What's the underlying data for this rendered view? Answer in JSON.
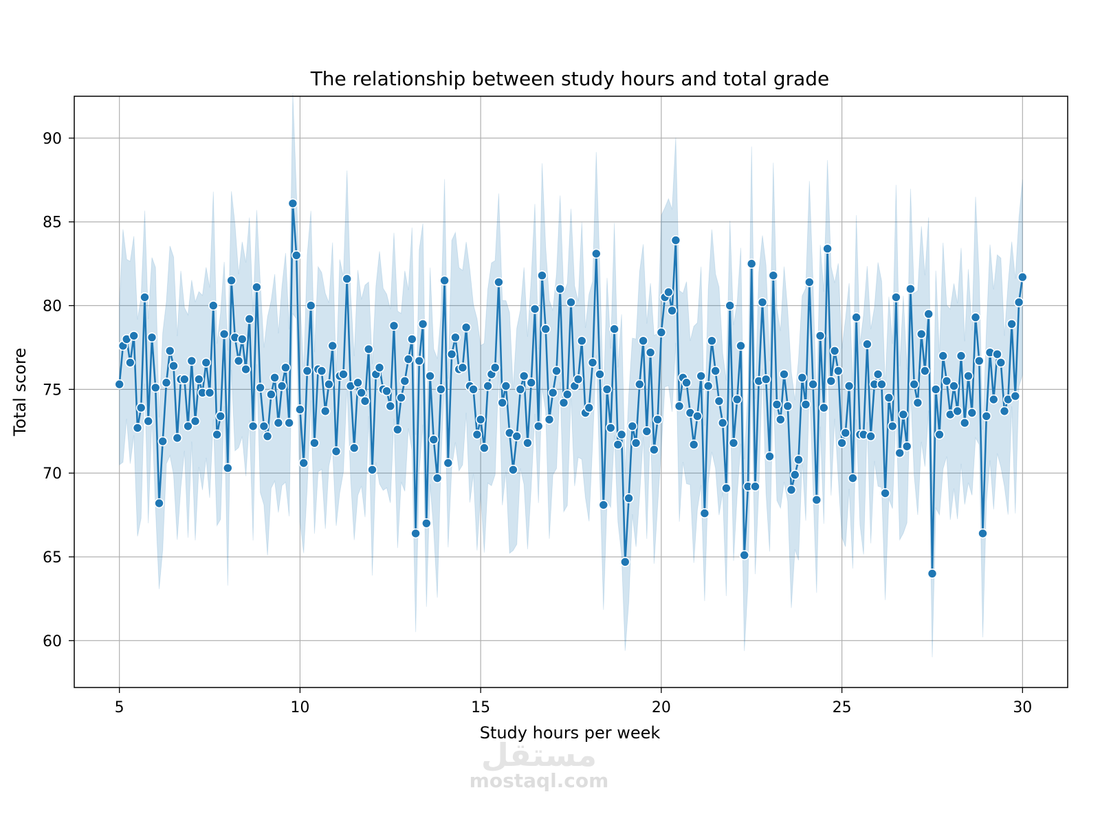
{
  "chart_data": {
    "type": "line",
    "title": "The relationship between study hours and total grade",
    "xlabel": "Study hours per week",
    "ylabel": "Total score",
    "xlim": [
      3.75,
      31.25
    ],
    "ylim": [
      57.2,
      92.5
    ],
    "xticks": [
      5,
      10,
      15,
      20,
      25,
      30
    ],
    "yticks": [
      60,
      65,
      70,
      75,
      80,
      85,
      90
    ],
    "grid": true,
    "series": [
      {
        "name": "Total score",
        "color": "#1f77b4",
        "band_color": "#1f77b4",
        "x": [
          5.0,
          5.1,
          5.2,
          5.3,
          5.4,
          5.5,
          5.6,
          5.7,
          5.8,
          5.9,
          6.0,
          6.1,
          6.2,
          6.3,
          6.4,
          6.5,
          6.6,
          6.7,
          6.8,
          6.9,
          7.0,
          7.1,
          7.2,
          7.3,
          7.4,
          7.5,
          7.6,
          7.7,
          7.8,
          7.9,
          8.0,
          8.1,
          8.2,
          8.3,
          8.4,
          8.5,
          8.6,
          8.7,
          8.8,
          8.9,
          9.0,
          9.1,
          9.2,
          9.3,
          9.4,
          9.5,
          9.6,
          9.7,
          9.8,
          9.9,
          10.0,
          10.1,
          10.2,
          10.3,
          10.4,
          10.5,
          10.6,
          10.7,
          10.8,
          10.9,
          11.0,
          11.1,
          11.2,
          11.3,
          11.4,
          11.5,
          11.6,
          11.7,
          11.8,
          11.9,
          12.0,
          12.1,
          12.2,
          12.3,
          12.4,
          12.5,
          12.6,
          12.7,
          12.8,
          12.9,
          13.0,
          13.1,
          13.2,
          13.3,
          13.4,
          13.5,
          13.6,
          13.7,
          13.8,
          13.9,
          14.0,
          14.1,
          14.2,
          14.3,
          14.4,
          14.5,
          14.6,
          14.7,
          14.8,
          14.9,
          15.0,
          15.1,
          15.2,
          15.3,
          15.4,
          15.5,
          15.6,
          15.7,
          15.8,
          15.9,
          16.0,
          16.1,
          16.2,
          16.3,
          16.4,
          16.5,
          16.6,
          16.7,
          16.8,
          16.9,
          17.0,
          17.1,
          17.2,
          17.3,
          17.4,
          17.5,
          17.6,
          17.7,
          17.8,
          17.9,
          18.0,
          18.1,
          18.2,
          18.3,
          18.4,
          18.5,
          18.6,
          18.7,
          18.8,
          18.9,
          19.0,
          19.1,
          19.2,
          19.3,
          19.4,
          19.5,
          19.6,
          19.7,
          19.8,
          19.9,
          20.0,
          20.1,
          20.2,
          20.3,
          20.4,
          20.5,
          20.6,
          20.7,
          20.8,
          20.9,
          21.0,
          21.1,
          21.2,
          21.3,
          21.4,
          21.5,
          21.6,
          21.7,
          21.8,
          21.9,
          22.0,
          22.1,
          22.2,
          22.3,
          22.4,
          22.5,
          22.6,
          22.7,
          22.8,
          22.9,
          23.0,
          23.1,
          23.2,
          23.3,
          23.4,
          23.5,
          23.6,
          23.7,
          23.8,
          23.9,
          24.0,
          24.1,
          24.2,
          24.3,
          24.4,
          24.5,
          24.6,
          24.7,
          24.8,
          24.9,
          25.0,
          25.1,
          25.2,
          25.3,
          25.4,
          25.5,
          25.6,
          25.7,
          25.8,
          25.9,
          26.0,
          26.1,
          26.2,
          26.3,
          26.4,
          26.5,
          26.6,
          26.7,
          26.8,
          26.9,
          27.0,
          27.1,
          27.2,
          27.3,
          27.4,
          27.5,
          27.6,
          27.7,
          27.8,
          27.9,
          28.0,
          28.1,
          28.2,
          28.3,
          28.4,
          28.5,
          28.6,
          28.7,
          28.8,
          28.9,
          29.0,
          29.1,
          29.2,
          29.3,
          29.4,
          29.5,
          29.6,
          29.7,
          29.8,
          29.9,
          30.0
        ],
        "values": [
          75.3,
          77.6,
          78.0,
          76.6,
          78.2,
          72.7,
          73.9,
          80.5,
          73.1,
          78.1,
          75.1,
          68.2,
          71.9,
          75.4,
          77.3,
          76.4,
          72.1,
          75.6,
          75.6,
          72.8,
          76.7,
          73.1,
          75.6,
          74.8,
          76.6,
          74.8,
          80.0,
          72.3,
          73.4,
          78.3,
          70.3,
          81.5,
          78.1,
          76.7,
          78.0,
          76.2,
          79.2,
          72.8,
          81.1,
          75.1,
          72.8,
          72.2,
          74.7,
          75.7,
          73.0,
          75.2,
          76.3,
          73.0,
          86.1,
          83.0,
          73.8,
          70.6,
          76.1,
          80.0,
          71.8,
          76.2,
          76.1,
          73.7,
          75.3,
          77.6,
          71.3,
          75.8,
          75.9,
          81.6,
          75.2,
          71.5,
          75.4,
          74.8,
          74.3,
          77.4,
          70.2,
          75.9,
          76.3,
          75.0,
          74.9,
          74.0,
          78.8,
          72.6,
          74.5,
          75.5,
          76.8,
          78.0,
          66.4,
          76.7,
          78.9,
          67.0,
          75.8,
          72.0,
          69.7,
          75.0,
          81.5,
          70.6,
          77.1,
          78.1,
          76.2,
          76.3,
          78.7,
          75.2,
          75.0,
          72.3,
          73.2,
          71.5,
          75.2,
          75.9,
          76.3,
          81.4,
          74.2,
          75.2,
          72.4,
          70.2,
          72.2,
          75.0,
          75.8,
          71.8,
          75.4,
          79.8,
          72.8,
          81.8,
          78.6,
          73.2,
          74.8,
          76.1,
          81.0,
          74.2,
          74.7,
          80.2,
          75.2,
          75.6,
          77.9,
          73.6,
          73.9,
          76.6,
          83.1,
          75.9,
          68.1,
          75.0,
          72.7,
          78.6,
          71.7,
          72.3,
          64.7,
          68.5,
          72.8,
          71.8,
          75.3,
          77.9,
          72.5,
          77.2,
          71.4,
          73.2,
          78.4,
          80.5,
          80.8,
          79.7,
          83.9,
          74.0,
          75.7,
          75.4,
          73.6,
          71.7,
          73.4,
          75.8,
          67.6,
          75.2,
          77.9,
          76.1,
          74.3,
          73.0,
          69.1,
          80.0,
          71.8,
          74.4,
          77.6,
          65.1,
          69.2,
          82.5,
          69.2,
          75.5,
          80.2,
          75.6,
          71.0,
          81.8,
          74.1,
          73.2,
          75.9,
          74.0,
          69.0,
          69.9,
          70.8,
          75.7,
          74.1,
          81.4,
          75.3,
          68.4,
          78.2,
          73.9,
          83.4,
          75.5,
          77.3,
          76.1,
          71.8,
          72.4,
          75.2,
          69.7,
          79.3,
          72.3,
          72.3,
          77.7,
          72.2,
          75.3,
          75.9,
          75.3,
          68.8,
          74.5,
          72.8,
          80.5,
          71.2,
          73.5,
          71.6,
          81.0,
          75.3,
          74.2,
          78.3,
          76.1,
          79.5,
          64.0,
          75.0,
          72.3,
          77.0,
          75.5,
          73.5,
          75.2,
          73.7,
          77.0,
          73.0,
          75.8,
          73.6,
          79.3,
          76.7,
          66.4,
          73.4,
          77.2,
          74.4,
          77.1,
          76.6,
          73.7,
          74.4,
          78.9,
          74.6,
          80.2,
          81.7
        ]
      }
    ]
  },
  "watermark": {
    "logo_text": "مستقل",
    "url_text": "mostaql.com"
  }
}
